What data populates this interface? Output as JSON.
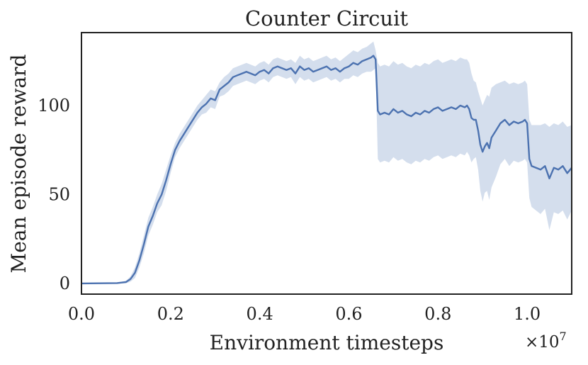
{
  "chart_data": {
    "type": "line",
    "title": "Counter Circuit",
    "xlabel": "Environment timesteps",
    "ylabel": "Mean episode reward",
    "x_offset_label": "×10",
    "x_offset_exponent": "7",
    "xlim": [
      0.0,
      1.1
    ],
    "ylim": [
      -6,
      141
    ],
    "x_ticks": [
      0.0,
      0.2,
      0.4,
      0.6,
      0.8,
      1.0
    ],
    "x_tick_labels": [
      "0.0",
      "0.2",
      "0.4",
      "0.6",
      "0.8",
      "1.0"
    ],
    "y_ticks": [
      0,
      50,
      100
    ],
    "y_tick_labels": [
      "0",
      "50",
      "100"
    ],
    "grid": false,
    "legend": "none",
    "colors": {
      "line": "#4c72b0",
      "band": "#c9d6e8",
      "frame": "#222222"
    },
    "series": [
      {
        "x": [
          0.0,
          0.08,
          0.1,
          0.11,
          0.12,
          0.13,
          0.14,
          0.15,
          0.16,
          0.17,
          0.18,
          0.19,
          0.2,
          0.21,
          0.22,
          0.23,
          0.24,
          0.25,
          0.26,
          0.27,
          0.28,
          0.29,
          0.3,
          0.31,
          0.32,
          0.33,
          0.34,
          0.35,
          0.36,
          0.37,
          0.38,
          0.39,
          0.4,
          0.41,
          0.42,
          0.43,
          0.44,
          0.45,
          0.46,
          0.47,
          0.48,
          0.49,
          0.5,
          0.51,
          0.52,
          0.53,
          0.54,
          0.55,
          0.56,
          0.57,
          0.58,
          0.59,
          0.6,
          0.61,
          0.62,
          0.63,
          0.64,
          0.65,
          0.655,
          0.66,
          0.665,
          0.67,
          0.68,
          0.69,
          0.7,
          0.71,
          0.72,
          0.73,
          0.74,
          0.75,
          0.76,
          0.77,
          0.78,
          0.79,
          0.8,
          0.81,
          0.82,
          0.83,
          0.84,
          0.85,
          0.86,
          0.865,
          0.87,
          0.875,
          0.88,
          0.885,
          0.89,
          0.895,
          0.9,
          0.905,
          0.91,
          0.915,
          0.92,
          0.93,
          0.94,
          0.95,
          0.96,
          0.97,
          0.98,
          0.99,
          0.995,
          1.0,
          1.005,
          1.01,
          1.02,
          1.03,
          1.04,
          1.05,
          1.06,
          1.07,
          1.08,
          1.09,
          1.1
        ],
        "y": [
          0.0,
          0.2,
          0.8,
          2.5,
          6.0,
          13.0,
          22.0,
          32.0,
          38.0,
          45.0,
          50.0,
          58.0,
          67.0,
          75.0,
          80.0,
          84.0,
          88.0,
          92.0,
          96.0,
          99.0,
          101.0,
          104.0,
          103.0,
          109.0,
          111.0,
          113.0,
          116.0,
          117.0,
          118.0,
          119.0,
          118.0,
          117.0,
          119.0,
          120.0,
          118.0,
          121.0,
          122.0,
          121.0,
          120.0,
          121.0,
          118.0,
          122.0,
          120.0,
          121.0,
          119.0,
          120.0,
          121.0,
          122.0,
          120.0,
          121.0,
          119.0,
          121.0,
          122.0,
          124.0,
          123.0,
          125.0,
          126.0,
          127.0,
          128.0,
          126.0,
          97.0,
          95.0,
          96.0,
          95.0,
          98.0,
          96.0,
          97.0,
          95.0,
          94.0,
          96.0,
          95.0,
          97.0,
          96.0,
          98.0,
          99.0,
          97.0,
          98.0,
          99.0,
          98.0,
          100.0,
          99.0,
          100.0,
          98.0,
          93.0,
          92.0,
          92.0,
          86.0,
          78.0,
          74.0,
          77.0,
          79.0,
          76.0,
          82.0,
          86.0,
          90.0,
          92.0,
          89.0,
          91.0,
          90.0,
          91.0,
          92.0,
          90.0,
          70.0,
          66.0,
          65.0,
          64.0,
          66.0,
          59.0,
          65.0,
          64.0,
          66.0,
          62.0,
          65.0
        ],
        "upper": [
          0.3,
          0.5,
          1.5,
          4.0,
          9.0,
          17.0,
          27.0,
          37.0,
          43.0,
          50.0,
          56.0,
          64.0,
          72.0,
          79.0,
          84.0,
          88.0,
          92.0,
          96.0,
          100.0,
          103.0,
          106.0,
          109.0,
          108.0,
          113.0,
          116.0,
          118.0,
          121.0,
          122.0,
          123.0,
          124.0,
          123.0,
          122.0,
          124.0,
          125.0,
          123.0,
          126.0,
          127.0,
          126.0,
          125.0,
          126.0,
          124.0,
          128.0,
          126.0,
          127.0,
          125.0,
          126.0,
          127.0,
          128.0,
          126.0,
          127.0,
          125.0,
          127.0,
          129.0,
          131.0,
          130.0,
          132.0,
          133.0,
          135.0,
          136.0,
          131.0,
          124.0,
          122.0,
          123.0,
          122.0,
          125.0,
          123.0,
          124.0,
          122.0,
          121.0,
          123.0,
          122.0,
          124.0,
          123.0,
          125.0,
          126.0,
          124.0,
          125.0,
          126.0,
          125.0,
          127.0,
          126.0,
          126.0,
          124.0,
          118.0,
          114.0,
          113.0,
          108.0,
          104.0,
          100.0,
          103.0,
          106.0,
          105.0,
          110.0,
          112.0,
          113.0,
          114.0,
          112.0,
          113.0,
          112.0,
          113.0,
          114.0,
          112.0,
          92.0,
          89.0,
          89.0,
          89.0,
          90.0,
          88.0,
          90.0,
          89.0,
          91.0,
          88.0,
          89.0
        ],
        "lower": [
          -0.3,
          -0.2,
          0.1,
          1.0,
          3.0,
          9.0,
          17.0,
          27.0,
          33.0,
          40.0,
          44.0,
          52.0,
          62.0,
          71.0,
          76.0,
          80.0,
          84.0,
          88.0,
          92.0,
          95.0,
          96.0,
          99.0,
          98.0,
          105.0,
          106.0,
          108.0,
          111.0,
          112.0,
          113.0,
          114.0,
          113.0,
          112.0,
          114.0,
          115.0,
          113.0,
          116.0,
          117.0,
          116.0,
          115.0,
          116.0,
          112.0,
          116.0,
          114.0,
          115.0,
          113.0,
          114.0,
          115.0,
          116.0,
          114.0,
          115.0,
          113.0,
          115.0,
          115.0,
          117.0,
          116.0,
          118.0,
          119.0,
          119.0,
          120.0,
          121.0,
          70.0,
          68.0,
          69.0,
          68.0,
          71.0,
          69.0,
          70.0,
          68.0,
          67.0,
          69.0,
          68.0,
          70.0,
          69.0,
          71.0,
          72.0,
          70.0,
          71.0,
          72.0,
          71.0,
          73.0,
          72.0,
          74.0,
          72.0,
          68.0,
          70.0,
          71.0,
          64.0,
          52.0,
          46.0,
          51.0,
          52.0,
          47.0,
          54.0,
          60.0,
          67.0,
          70.0,
          66.0,
          69.0,
          68.0,
          69.0,
          70.0,
          68.0,
          48.0,
          43.0,
          41.0,
          39.0,
          42.0,
          30.0,
          40.0,
          39.0,
          41.0,
          36.0,
          41.0
        ]
      }
    ]
  }
}
